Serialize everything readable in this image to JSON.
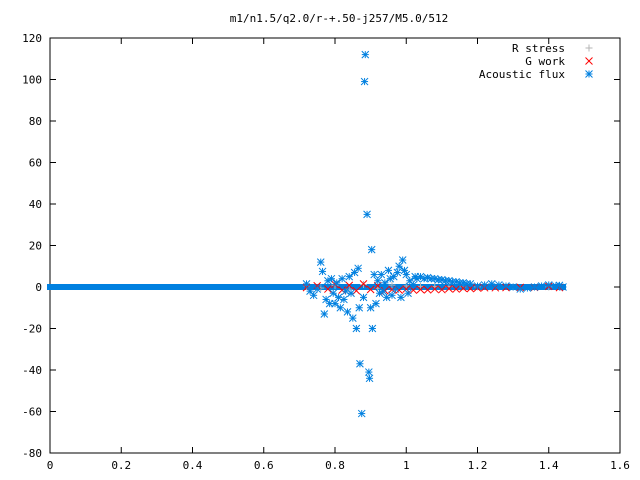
{
  "chart_data": {
    "type": "scatter",
    "title": "m1/n1.5/q2.0/r-+.50-j257/M5.0/512",
    "xlabel": "",
    "ylabel": "",
    "xlim": [
      0,
      1.6
    ],
    "ylim": [
      -80,
      120
    ],
    "x_ticks": [
      "0",
      "0.2",
      "0.4",
      "0.6",
      "0.8",
      "1",
      "1.2",
      "1.4",
      "1.6"
    ],
    "y_ticks": [
      "120",
      "100",
      "80",
      "60",
      "40",
      "20",
      "0",
      "-20",
      "-40",
      "-60",
      "-80"
    ],
    "legend_position": "top-right",
    "grid": false,
    "series": [
      {
        "name": "R stress",
        "marker": "plus",
        "color": "#b4b4b4",
        "points": [
          [
            0.72,
            0.3
          ],
          [
            0.76,
            -0.5
          ],
          [
            0.8,
            0.8
          ],
          [
            0.84,
            -1.0
          ],
          [
            0.88,
            1.2
          ],
          [
            0.92,
            -0.6
          ],
          [
            0.96,
            0.9
          ],
          [
            1.0,
            0.5
          ],
          [
            1.04,
            0.3
          ],
          [
            1.08,
            0.2
          ],
          [
            1.12,
            0.2
          ],
          [
            1.16,
            0.1
          ],
          [
            1.2,
            0.1
          ],
          [
            1.3,
            0.0
          ],
          [
            1.4,
            0.0
          ]
        ]
      },
      {
        "name": "G work",
        "marker": "cross",
        "color": "#ff0000",
        "points": [
          [
            0.72,
            -0.3
          ],
          [
            0.75,
            0.6
          ],
          [
            0.78,
            -1.0
          ],
          [
            0.8,
            1.2
          ],
          [
            0.82,
            -1.5
          ],
          [
            0.84,
            0.8
          ],
          [
            0.86,
            -1.8
          ],
          [
            0.88,
            1.5
          ],
          [
            0.9,
            -1.2
          ],
          [
            0.92,
            0.6
          ],
          [
            0.94,
            -1.8
          ],
          [
            0.96,
            -1.2
          ],
          [
            0.98,
            -1.5
          ],
          [
            1.0,
            -1.0
          ],
          [
            1.02,
            -1.5
          ],
          [
            1.04,
            -1.2
          ],
          [
            1.06,
            -1.4
          ],
          [
            1.08,
            -1.0
          ],
          [
            1.1,
            -1.3
          ],
          [
            1.12,
            -0.8
          ],
          [
            1.14,
            -1.0
          ],
          [
            1.16,
            -0.6
          ],
          [
            1.18,
            -0.8
          ],
          [
            1.2,
            -0.5
          ],
          [
            1.22,
            -0.4
          ],
          [
            1.25,
            -0.4
          ],
          [
            1.28,
            -0.3
          ],
          [
            1.32,
            -0.2
          ],
          [
            1.36,
            -0.2
          ],
          [
            1.4,
            0.3
          ],
          [
            1.43,
            -0.3
          ]
        ]
      },
      {
        "name": "Acoustic flux",
        "marker": "star",
        "color": "#0080e0",
        "points": [
          [
            0.72,
            1.5
          ],
          [
            0.73,
            -2.0
          ],
          [
            0.74,
            -4.0
          ],
          [
            0.75,
            -1.0
          ],
          [
            0.76,
            12.0
          ],
          [
            0.765,
            7.5
          ],
          [
            0.77,
            -13.0
          ],
          [
            0.775,
            -6.0
          ],
          [
            0.78,
            3.0
          ],
          [
            0.785,
            -8.0
          ],
          [
            0.79,
            4.0
          ],
          [
            0.795,
            -3.0
          ],
          [
            0.8,
            -8.0
          ],
          [
            0.805,
            2.0
          ],
          [
            0.81,
            -5.0
          ],
          [
            0.815,
            -10.0
          ],
          [
            0.82,
            4.0
          ],
          [
            0.825,
            -6.0
          ],
          [
            0.83,
            -2.0
          ],
          [
            0.835,
            -12.0
          ],
          [
            0.84,
            5.0
          ],
          [
            0.845,
            -3.0
          ],
          [
            0.85,
            -15.0
          ],
          [
            0.855,
            7.0
          ],
          [
            0.86,
            -20.0
          ],
          [
            0.865,
            9.0
          ],
          [
            0.868,
            -10.0
          ],
          [
            0.87,
            -37.0
          ],
          [
            0.875,
            -61.0
          ],
          [
            0.88,
            -5.0
          ],
          [
            0.885,
            112.0
          ],
          [
            0.883,
            99.0
          ],
          [
            0.89,
            35.0
          ],
          [
            0.895,
            -41.0
          ],
          [
            0.897,
            -44.0
          ],
          [
            0.9,
            -10.0
          ],
          [
            0.903,
            18.0
          ],
          [
            0.905,
            -20.0
          ],
          [
            0.91,
            6.0
          ],
          [
            0.915,
            -8.0
          ],
          [
            0.92,
            3.0
          ],
          [
            0.925,
            -3.0
          ],
          [
            0.93,
            6.0
          ],
          [
            0.935,
            -2.0
          ],
          [
            0.94,
            2.0
          ],
          [
            0.945,
            -5.0
          ],
          [
            0.95,
            8.0
          ],
          [
            0.955,
            4.0
          ],
          [
            0.96,
            -4.0
          ],
          [
            0.965,
            5.0
          ],
          [
            0.97,
            -1.0
          ],
          [
            0.975,
            7.0
          ],
          [
            0.98,
            10.0
          ],
          [
            0.985,
            -5.0
          ],
          [
            0.99,
            13.0
          ],
          [
            0.995,
            8.0
          ],
          [
            1.0,
            6.0
          ],
          [
            1.005,
            -3.0
          ],
          [
            1.01,
            3.0
          ],
          [
            1.02,
            1.0
          ],
          [
            1.025,
            5.0
          ],
          [
            1.03,
            4.0
          ],
          [
            1.04,
            5.0
          ],
          [
            1.05,
            4.0
          ],
          [
            1.06,
            4.5
          ],
          [
            1.07,
            4.0
          ],
          [
            1.08,
            4.0
          ],
          [
            1.09,
            3.5
          ],
          [
            1.1,
            3.5
          ],
          [
            1.11,
            3.0
          ],
          [
            1.12,
            3.0
          ],
          [
            1.13,
            2.5
          ],
          [
            1.14,
            2.5
          ],
          [
            1.15,
            2.0
          ],
          [
            1.16,
            2.0
          ],
          [
            1.17,
            1.5
          ],
          [
            1.18,
            1.5
          ],
          [
            1.2,
            0.5
          ],
          [
            1.22,
            1.0
          ],
          [
            1.24,
            1.5
          ],
          [
            1.26,
            1.0
          ],
          [
            1.28,
            0.5
          ],
          [
            1.3,
            0.0
          ],
          [
            1.32,
            -1.0
          ],
          [
            1.34,
            -0.5
          ],
          [
            1.36,
            0.0
          ],
          [
            1.38,
            0.5
          ],
          [
            1.4,
            1.0
          ],
          [
            1.42,
            0.5
          ],
          [
            1.43,
            0.8
          ],
          [
            1.44,
            0.0
          ]
        ]
      }
    ]
  }
}
